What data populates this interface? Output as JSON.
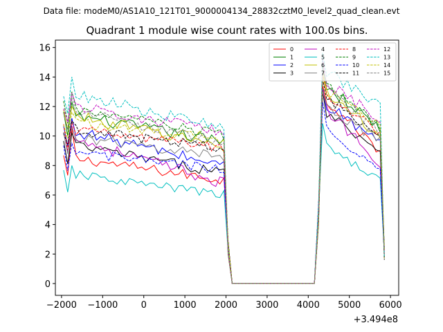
{
  "figure": {
    "suptitle": "Data file: modeM0/AS1A10_121T01_9000004134_28832cztM0_level2_quad_clean.evt",
    "title": "Quadrant 1 module wise count rates with 100.0s bins."
  },
  "chart_data": {
    "type": "line",
    "title": "Quadrant 1 module wise count rates with 100.0s bins.",
    "xlabel": "",
    "ylabel": "",
    "x_offset_label": "+3.494e8",
    "xlim": [
      -2150,
      6200
    ],
    "ylim": [
      -0.8,
      16.5
    ],
    "xticks": [
      -2000,
      -1000,
      0,
      1000,
      2000,
      3000,
      4000,
      5000,
      6000
    ],
    "xtick_labels": [
      "−2000",
      "−1000",
      "0",
      "1000",
      "2000",
      "3000",
      "4000",
      "5000",
      "6000"
    ],
    "yticks": [
      0,
      2,
      4,
      6,
      8,
      10,
      12,
      14,
      16
    ],
    "ytick_labels": [
      "0",
      "2",
      "4",
      "6",
      "8",
      "10",
      "12",
      "14",
      "16"
    ],
    "legend_position": "upper right",
    "legend_columns": 4,
    "segments": [
      {
        "name": "pre-gap",
        "x_start": -1950,
        "x_end": 1950
      },
      {
        "name": "gap",
        "x_start": 2150,
        "x_end": 4150
      },
      {
        "name": "post-gap",
        "x_start": 4350,
        "x_end": 5750
      }
    ],
    "series": [
      {
        "name": "0",
        "color": "#ff0000",
        "dash": "solid",
        "level_start": 8.6,
        "level_end": 7.0,
        "spike": 10.5,
        "post_level": 12.6,
        "post_end": 9.0,
        "noise": 0.35
      },
      {
        "name": "1",
        "color": "#008000",
        "dash": "solid",
        "level_start": 11.5,
        "level_end": 9.6,
        "spike": 12.3,
        "post_level": 13.6,
        "post_end": 10.5,
        "noise": 0.4
      },
      {
        "name": "2",
        "color": "#0000ff",
        "dash": "solid",
        "level_start": 10.5,
        "level_end": 8.0,
        "spike": 11.2,
        "post_level": 12.3,
        "post_end": 9.5,
        "noise": 0.4
      },
      {
        "name": "3",
        "color": "#000000",
        "dash": "solid",
        "level_start": 9.5,
        "level_end": 7.5,
        "spike": 10.2,
        "post_level": 11.8,
        "post_end": 9.0,
        "noise": 0.35
      },
      {
        "name": "4",
        "color": "#bf00bf",
        "dash": "solid",
        "level_start": 10.0,
        "level_end": 6.8,
        "spike": 10.7,
        "post_level": 12.0,
        "post_end": 8.2,
        "noise": 0.4
      },
      {
        "name": "5",
        "color": "#00bfbf",
        "dash": "solid",
        "level_start": 7.5,
        "level_end": 6.0,
        "spike": 8.0,
        "post_level": 9.5,
        "post_end": 7.0,
        "noise": 0.3
      },
      {
        "name": "6",
        "color": "#bfbf00",
        "dash": "solid",
        "level_start": 11.5,
        "level_end": 9.3,
        "spike": 12.0,
        "post_level": 13.2,
        "post_end": 10.0,
        "noise": 0.4
      },
      {
        "name": "7",
        "color": "#808080",
        "dash": "solid",
        "level_start": 10.0,
        "level_end": 8.6,
        "spike": 10.6,
        "post_level": 12.2,
        "post_end": 9.6,
        "noise": 0.35
      },
      {
        "name": "8",
        "color": "#ff0000",
        "dash": "dashed",
        "level_start": 10.5,
        "level_end": 9.2,
        "spike": 11.0,
        "post_level": 13.0,
        "post_end": 10.2,
        "noise": 0.35
      },
      {
        "name": "9",
        "color": "#008000",
        "dash": "dashed",
        "level_start": 12.0,
        "level_end": 10.0,
        "spike": 13.0,
        "post_level": 13.8,
        "post_end": 10.6,
        "noise": 0.4
      },
      {
        "name": "10",
        "color": "#0000ff",
        "dash": "dashed",
        "level_start": 9.0,
        "level_end": 7.7,
        "spike": 9.5,
        "post_level": 11.0,
        "post_end": 7.5,
        "noise": 0.35
      },
      {
        "name": "11",
        "color": "#000000",
        "dash": "dashed",
        "level_start": 10.5,
        "level_end": 9.2,
        "spike": 11.0,
        "post_level": 12.8,
        "post_end": 10.0,
        "noise": 0.35
      },
      {
        "name": "12",
        "color": "#bf00bf",
        "dash": "dashed",
        "level_start": 12.2,
        "level_end": 10.2,
        "spike": 12.9,
        "post_level": 13.8,
        "post_end": 11.2,
        "noise": 0.4
      },
      {
        "name": "13",
        "color": "#00bfbf",
        "dash": "dashed",
        "level_start": 13.0,
        "level_end": 10.5,
        "spike": 14.0,
        "post_level": 14.5,
        "post_end": 12.0,
        "noise": 0.4
      },
      {
        "name": "14",
        "color": "#bfbf00",
        "dash": "dashed",
        "level_start": 11.0,
        "level_end": 9.8,
        "spike": 11.6,
        "post_level": 13.2,
        "post_end": 10.8,
        "noise": 0.35
      },
      {
        "name": "15",
        "color": "#808080",
        "dash": "dashed",
        "level_start": 11.8,
        "level_end": 9.5,
        "spike": 12.6,
        "post_level": 13.4,
        "post_end": 10.3,
        "noise": 0.4
      }
    ]
  }
}
